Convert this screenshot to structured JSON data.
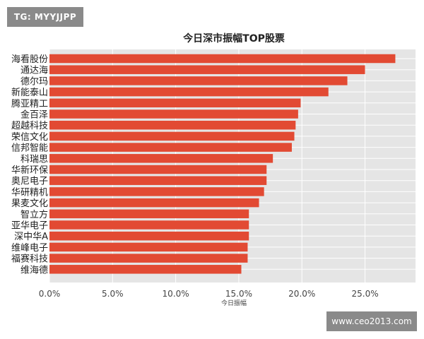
{
  "watermarks": {
    "top_left": "TG: MYYJJPP",
    "bottom_right": "www.ceo2013.com"
  },
  "chart_data": {
    "type": "bar",
    "orientation": "horizontal",
    "title": "今日深市振幅TOP股票",
    "xlabel": "今日振幅",
    "ylabel": "",
    "xlim": [
      0,
      0.29
    ],
    "xticks": [
      0,
      0.05,
      0.1,
      0.15,
      0.2,
      0.25
    ],
    "xtick_labels": [
      "0.0%",
      "5.0%",
      "10.0%",
      "15.0%",
      "20.0%",
      "25.0%"
    ],
    "grid": true,
    "categories": [
      "海看股份",
      "通达海",
      "德尔玛",
      "新能泰山",
      "腾亚精工",
      "金百泽",
      "超越科技",
      "荣信文化",
      "信邦智能",
      "科瑞思",
      "华新环保",
      "奥尼电子",
      "华研精机",
      "果麦文化",
      "智立方",
      "亚华电子",
      "深中华A",
      "维峰电子",
      "福赛科技",
      "维海德"
    ],
    "values": [
      0.274,
      0.25,
      0.236,
      0.221,
      0.199,
      0.197,
      0.195,
      0.194,
      0.192,
      0.177,
      0.172,
      0.172,
      0.17,
      0.166,
      0.158,
      0.158,
      0.158,
      0.157,
      0.157,
      0.152
    ],
    "colors": {
      "bar": "#E24A33",
      "plot_bg": "#E5E5E5",
      "grid": "#FFFFFF"
    }
  }
}
